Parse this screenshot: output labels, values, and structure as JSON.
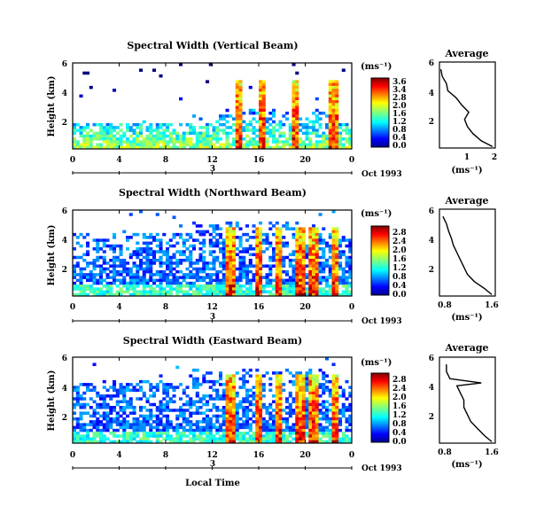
{
  "chart_data": [
    {
      "type": "heatmap",
      "title": "Spectral Width (Vertical Beam)",
      "ylabel": "Height (km)",
      "yticks": [
        "6",
        "4",
        "2"
      ],
      "xticks": [
        "0",
        "4",
        "8",
        "12",
        "16",
        "20",
        "0"
      ],
      "ylim": [
        0,
        6
      ],
      "xlim": [
        0,
        24
      ],
      "date_day": "3",
      "date_label": "Oct 1993",
      "colorbar_unit": "(ms⁻¹)",
      "colorbar_ticks": [
        "3.6",
        "3.4",
        "2.8",
        "2.0",
        "1.6",
        "1.2",
        "0.8",
        "0.4",
        "0.0"
      ],
      "average": {
        "title": "Average",
        "xlabel": "(ms⁻¹)",
        "xticks": [
          "1",
          "2"
        ],
        "yticks": [
          "6",
          "4",
          "2"
        ],
        "xlim": [
          0,
          2
        ],
        "ylim": [
          0,
          6
        ],
        "profile_height_km": [
          0.1,
          0.5,
          1.0,
          1.5,
          2.0,
          2.5,
          3.0,
          3.5,
          4.0,
          4.5,
          5.0,
          5.5
        ],
        "profile_width": [
          1.9,
          1.5,
          1.2,
          1.0,
          0.9,
          1.05,
          0.8,
          0.6,
          0.3,
          0.25,
          0.1,
          0.05
        ]
      }
    },
    {
      "type": "heatmap",
      "title": "Spectral Width (Northward Beam)",
      "ylabel": "Height (km)",
      "yticks": [
        "6",
        "4",
        "2"
      ],
      "xticks": [
        "0",
        "4",
        "8",
        "12",
        "16",
        "20",
        "0"
      ],
      "ylim": [
        0,
        6
      ],
      "xlim": [
        0,
        24
      ],
      "date_day": "3",
      "date_label": "Oct 1993",
      "colorbar_unit": "(ms⁻¹)",
      "colorbar_ticks": [
        "2.8",
        "2.4",
        "2.0",
        "1.6",
        "1.2",
        "0.8",
        "0.4",
        "0.0"
      ],
      "average": {
        "title": "Average",
        "xlabel": "(ms⁻¹)",
        "xticks": [
          "0.8",
          "1.6"
        ],
        "yticks": [
          "6",
          "4",
          "2"
        ],
        "xlim": [
          0.8,
          1.6
        ],
        "ylim": [
          0,
          6
        ],
        "profile_height_km": [
          0.1,
          0.5,
          1.0,
          1.5,
          2.0,
          2.5,
          3.0,
          3.5,
          4.0,
          4.5,
          5.0,
          5.5
        ],
        "profile_width": [
          1.55,
          1.45,
          1.3,
          1.2,
          1.15,
          1.1,
          1.05,
          1.0,
          0.97,
          0.93,
          0.9,
          0.85
        ]
      }
    },
    {
      "type": "heatmap",
      "title": "Spectral Width (Eastward Beam)",
      "ylabel": "Height (km)",
      "yticks": [
        "6",
        "4",
        "2"
      ],
      "xticks": [
        "0",
        "4",
        "8",
        "12",
        "16",
        "20",
        "0"
      ],
      "ylim": [
        0,
        6
      ],
      "xlim": [
        0,
        24
      ],
      "date_day": "3",
      "date_label": "Oct 1993",
      "colorbar_unit": "(ms⁻¹)",
      "colorbar_ticks": [
        "2.8",
        "2.4",
        "2.0",
        "1.6",
        "1.2",
        "0.8",
        "0.4",
        "0.0"
      ],
      "average": {
        "title": "Average",
        "xlabel": "(ms⁻¹)",
        "xticks": [
          "0.8",
          "1.6"
        ],
        "yticks": [
          "6",
          "4",
          "2"
        ],
        "xlim": [
          0.8,
          1.6
        ],
        "ylim": [
          0,
          6
        ],
        "profile_height_km": [
          0.1,
          0.5,
          1.0,
          1.5,
          2.0,
          2.5,
          3.0,
          3.5,
          4.0,
          4.2,
          4.5,
          5.0,
          5.5
        ],
        "profile_width": [
          1.55,
          1.45,
          1.35,
          1.25,
          1.2,
          1.15,
          1.15,
          1.1,
          1.05,
          1.4,
          0.95,
          0.9,
          0.9
        ]
      }
    }
  ],
  "shared": {
    "xlabel": "Local Time"
  }
}
